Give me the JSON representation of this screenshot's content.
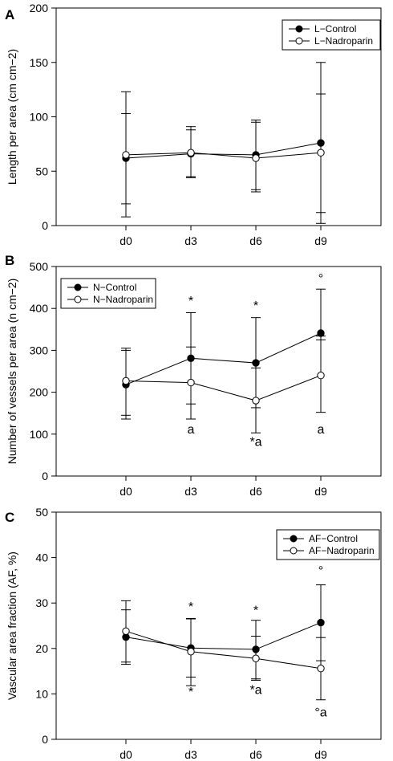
{
  "chart_data": [
    {
      "type": "line",
      "panel_label": "A",
      "ylabel": "Length per area (cm cm−2)",
      "categories": [
        "d0",
        "d3",
        "d6",
        "d9"
      ],
      "ylim": [
        0,
        200
      ],
      "yticks": [
        0,
        50,
        100,
        150,
        200
      ],
      "legend_position": "top-right",
      "series": [
        {
          "name": "L−Control",
          "marker": "filled",
          "values": [
            62,
            66,
            65,
            76
          ],
          "err_upper": [
            103,
            88,
            97,
            150
          ],
          "err_lower": [
            20,
            45,
            33,
            2
          ]
        },
        {
          "name": "L−Nadroparin",
          "marker": "open",
          "values": [
            65,
            67,
            62,
            67
          ],
          "err_upper": [
            123,
            91,
            95,
            121
          ],
          "err_lower": [
            8,
            44,
            31,
            12
          ]
        }
      ],
      "annotations": []
    },
    {
      "type": "line",
      "panel_label": "B",
      "ylabel": "Number of vessels per area (n cm−2)",
      "categories": [
        "d0",
        "d3",
        "d6",
        "d9"
      ],
      "ylim": [
        0,
        500
      ],
      "yticks": [
        0,
        100,
        200,
        300,
        400,
        500
      ],
      "legend_position": "top-left",
      "series": [
        {
          "name": "N−Control",
          "marker": "filled",
          "values": [
            218,
            281,
            270,
            341
          ],
          "err_upper": [
            305,
            390,
            378,
            446
          ],
          "err_lower": [
            136,
            172,
            163,
            325
          ]
        },
        {
          "name": "N−Nadroparin",
          "marker": "open",
          "values": [
            227,
            223,
            180,
            240
          ],
          "err_upper": [
            300,
            308,
            258,
            334
          ],
          "err_lower": [
            145,
            136,
            103,
            152
          ]
        }
      ],
      "annotations": [
        {
          "text": "*",
          "x": "d3",
          "y": 408
        },
        {
          "text": "*",
          "x": "d6",
          "y": 397
        },
        {
          "text": "°",
          "x": "d9",
          "y": 462
        },
        {
          "text": "a",
          "x": "d3",
          "y": 102
        },
        {
          "text": "*a",
          "x": "d6",
          "y": 72
        },
        {
          "text": "a",
          "x": "d9",
          "y": 102
        }
      ]
    },
    {
      "type": "line",
      "panel_label": "C",
      "ylabel": "Vascular area fraction (AF, %)",
      "categories": [
        "d0",
        "d3",
        "d6",
        "d9"
      ],
      "ylim": [
        0,
        50
      ],
      "yticks": [
        0,
        10,
        20,
        30,
        40,
        50
      ],
      "legend_position": "top-right",
      "series": [
        {
          "name": "AF−Control",
          "marker": "filled",
          "values": [
            22.5,
            20.1,
            19.8,
            25.7
          ],
          "err_upper": [
            28.5,
            26.5,
            26.2,
            34.0
          ],
          "err_lower": [
            16.5,
            13.7,
            13.3,
            17.3
          ]
        },
        {
          "name": "AF−Nadroparin",
          "marker": "open",
          "values": [
            23.8,
            19.3,
            17.8,
            15.6
          ],
          "err_upper": [
            30.5,
            26.6,
            22.7,
            22.4
          ],
          "err_lower": [
            17.0,
            11.8,
            13.0,
            8.7
          ]
        }
      ],
      "annotations": [
        {
          "text": "*",
          "x": "d3",
          "y": 28.3
        },
        {
          "text": "*",
          "x": "d6",
          "y": 27.5
        },
        {
          "text": "°",
          "x": "d9",
          "y": 36.2
        },
        {
          "text": "*",
          "x": "d3",
          "y": 9.5
        },
        {
          "text": "*a",
          "x": "d6",
          "y": 10.0
        },
        {
          "text": "°a",
          "x": "d9",
          "y": 5.0
        }
      ]
    }
  ]
}
